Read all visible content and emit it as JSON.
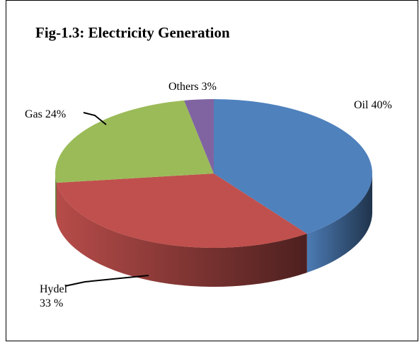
{
  "chart_data": {
    "type": "pie",
    "title": "Fig-1.3: Electricity Generation",
    "categories": [
      "Oil",
      "Hydel",
      "Gas",
      "Others"
    ],
    "values": [
      40,
      33,
      24,
      3
    ],
    "value_labels": [
      "40%",
      "33 %",
      "24%",
      "3%"
    ],
    "colors": [
      "#4f81bd",
      "#c0504d",
      "#9bbb59",
      "#8064a2"
    ],
    "three_d": true
  }
}
